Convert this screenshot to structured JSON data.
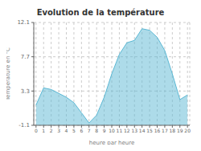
{
  "chart_data": {
    "type": "area",
    "title": "Evolution de la température",
    "xlabel": "heure par heure",
    "ylabel": "Température en °C",
    "x": [
      0,
      1,
      2,
      3,
      4,
      5,
      6,
      7,
      8,
      9,
      10,
      11,
      12,
      13,
      14,
      15,
      16,
      17,
      18,
      19,
      20
    ],
    "values": [
      1.5,
      3.7,
      3.5,
      3.0,
      2.5,
      1.8,
      0.5,
      -0.8,
      0.2,
      2.5,
      5.5,
      8.0,
      9.5,
      9.8,
      11.3,
      11.1,
      10.2,
      8.5,
      5.5,
      2.2,
      2.8
    ],
    "color": "#5bb8d4",
    "xlim": [
      -0.3,
      20.3
    ],
    "xticks": [
      0,
      1,
      2,
      3,
      4,
      5,
      6,
      7,
      8,
      9,
      10,
      11,
      12,
      13,
      14,
      15,
      16,
      17,
      18,
      19,
      20
    ],
    "ylim": [
      -1.1,
      12.1
    ],
    "yticks": [
      -1.1,
      3.3,
      7.7,
      12.1
    ],
    "grid": true
  }
}
